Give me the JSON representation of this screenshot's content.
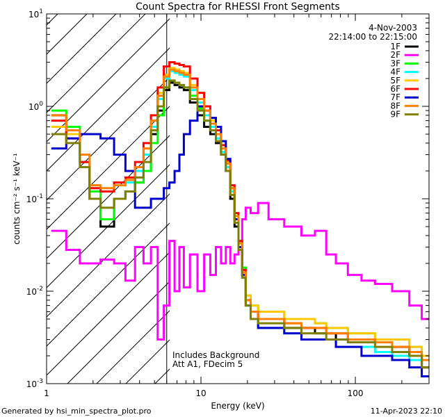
{
  "chart_data": {
    "type": "line",
    "title": "Count Spectra for RHESSI Front Segments",
    "xlabel": "Energy (keV)",
    "ylabel": "counts cm⁻² s⁻¹ keV⁻¹",
    "xscale": "log",
    "yscale": "log",
    "xlim": [
      1,
      300
    ],
    "ylim": [
      0.001,
      10
    ],
    "x_tick_labels": [
      {
        "value": 1,
        "label": "1"
      },
      {
        "value": 10,
        "label": "10"
      },
      {
        "value": 100,
        "label": "100"
      }
    ],
    "y_tick_labels": [
      {
        "value": 10,
        "base": "10",
        "exp": "1"
      },
      {
        "value": 1,
        "base": "10",
        "exp": "0"
      },
      {
        "value": 0.1,
        "base": "10",
        "exp": "-1"
      },
      {
        "value": 0.01,
        "base": "10",
        "exp": "-2"
      },
      {
        "value": 0.001,
        "base": "10",
        "exp": "-3"
      }
    ],
    "attenuator_boundary_keV": 6,
    "hatched_region": [
      1,
      6
    ],
    "annotation_date": "4-Nov-2003",
    "annotation_time": "22:14:00 to 22:15:00",
    "annotation_notes": [
      "Includes Background",
      "Att A1, FDecim 5"
    ],
    "legend_position": "top-right",
    "x": [
      1.2,
      1.5,
      1.8,
      2.0,
      2.5,
      3.0,
      3.5,
      4.0,
      4.5,
      5.0,
      5.5,
      6.0,
      6.5,
      7.0,
      7.5,
      8.0,
      9.0,
      10.0,
      11.0,
      12.0,
      13.0,
      14.0,
      15.0,
      16.0,
      17.0,
      18.0,
      19.0,
      20.0,
      22.0,
      25.0,
      30.0,
      40.0,
      50.0,
      60.0,
      70.0,
      80.0,
      100.0,
      120.0,
      150.0,
      200.0,
      250.0,
      290.0
    ],
    "series": [
      {
        "name": "1F",
        "color": "#000000",
        "values": [
          0.8,
          0.5,
          0.25,
          0.1,
          0.05,
          0.1,
          0.12,
          0.15,
          0.2,
          0.5,
          0.9,
          1.5,
          1.8,
          1.7,
          1.6,
          1.5,
          1.1,
          0.8,
          0.6,
          0.5,
          0.4,
          0.3,
          0.2,
          0.1,
          0.05,
          0.03,
          0.015,
          0.008,
          0.006,
          0.005,
          0.005,
          0.004,
          0.004,
          0.0035,
          0.0035,
          0.003,
          0.003,
          0.003,
          0.0028,
          0.0025,
          0.002,
          0.0015
        ]
      },
      {
        "name": "2F",
        "color": "#ff00ff",
        "values": [
          0.045,
          0.028,
          0.02,
          0.02,
          0.022,
          0.02,
          0.013,
          0.03,
          0.02,
          0.03,
          0.003,
          0.007,
          0.035,
          0.01,
          0.03,
          0.011,
          0.025,
          0.01,
          0.025,
          0.015,
          0.03,
          0.02,
          0.03,
          0.02,
          0.025,
          0.03,
          0.06,
          0.08,
          0.07,
          0.09,
          0.06,
          0.05,
          0.04,
          0.045,
          0.025,
          0.02,
          0.015,
          0.013,
          0.012,
          0.01,
          0.007,
          0.005
        ]
      },
      {
        "name": "3F",
        "color": "#00ff00",
        "values": [
          0.9,
          0.6,
          0.3,
          0.12,
          0.06,
          0.1,
          0.12,
          0.15,
          0.2,
          0.4,
          0.8,
          1.6,
          1.9,
          1.8,
          1.7,
          1.6,
          1.3,
          0.95,
          0.7,
          0.55,
          0.45,
          0.32,
          0.22,
          0.12,
          0.06,
          0.035,
          0.018,
          0.009,
          0.007,
          0.006,
          0.006,
          0.005,
          0.005,
          0.0045,
          0.004,
          0.004,
          0.0035,
          0.0035,
          0.003,
          0.003,
          0.0025,
          0.002
        ]
      },
      {
        "name": "4F",
        "color": "#00ffff",
        "values": [
          0.7,
          0.55,
          0.25,
          0.13,
          0.12,
          0.14,
          0.15,
          0.2,
          0.3,
          0.6,
          1.2,
          2.0,
          2.4,
          2.3,
          2.2,
          2.1,
          1.5,
          1.1,
          0.8,
          0.6,
          0.45,
          0.32,
          0.22,
          0.12,
          0.06,
          0.03,
          0.015,
          0.007,
          0.005,
          0.004,
          0.004,
          0.0035,
          0.003,
          0.003,
          0.003,
          0.0025,
          0.0025,
          0.0025,
          0.0022,
          0.002,
          0.0018,
          0.0015
        ]
      },
      {
        "name": "5F",
        "color": "#ffc800",
        "values": [
          0.6,
          0.5,
          0.3,
          0.14,
          0.12,
          0.15,
          0.17,
          0.22,
          0.35,
          0.7,
          1.4,
          2.2,
          2.6,
          2.5,
          2.4,
          2.3,
          1.7,
          1.2,
          0.9,
          0.7,
          0.5,
          0.35,
          0.25,
          0.13,
          0.065,
          0.035,
          0.017,
          0.009,
          0.007,
          0.006,
          0.006,
          0.005,
          0.005,
          0.0045,
          0.004,
          0.004,
          0.0035,
          0.0035,
          0.003,
          0.003,
          0.0025,
          0.002
        ]
      },
      {
        "name": "6F",
        "color": "#ff0000",
        "values": [
          0.7,
          0.45,
          0.25,
          0.13,
          0.12,
          0.15,
          0.17,
          0.25,
          0.4,
          0.8,
          1.6,
          2.7,
          3.0,
          2.9,
          2.8,
          2.7,
          2.0,
          1.4,
          1.0,
          0.75,
          0.55,
          0.38,
          0.26,
          0.14,
          0.07,
          0.035,
          0.017,
          0.008,
          0.006,
          0.005,
          0.005,
          0.0045,
          0.004,
          0.004,
          0.0035,
          0.0035,
          0.003,
          0.003,
          0.0028,
          0.0025,
          0.002,
          0.0015
        ]
      },
      {
        "name": "7F",
        "color": "#0000cc",
        "values": [
          0.35,
          0.45,
          0.5,
          0.5,
          0.45,
          0.3,
          0.2,
          0.08,
          0.08,
          0.1,
          0.1,
          0.13,
          0.15,
          0.2,
          0.3,
          0.5,
          0.7,
          1.0,
          0.9,
          0.75,
          0.6,
          0.42,
          0.27,
          0.13,
          0.06,
          0.03,
          0.015,
          0.007,
          0.005,
          0.004,
          0.004,
          0.0035,
          0.003,
          0.003,
          0.003,
          0.0025,
          0.0025,
          0.002,
          0.002,
          0.0018,
          0.0015,
          0.0012
        ]
      },
      {
        "name": "8F",
        "color": "#ff8000",
        "values": [
          0.8,
          0.55,
          0.3,
          0.14,
          0.13,
          0.14,
          0.16,
          0.22,
          0.35,
          0.7,
          1.3,
          2.1,
          2.5,
          2.4,
          2.3,
          2.2,
          1.6,
          1.2,
          0.9,
          0.65,
          0.5,
          0.35,
          0.24,
          0.13,
          0.065,
          0.033,
          0.016,
          0.008,
          0.006,
          0.005,
          0.005,
          0.0045,
          0.004,
          0.004,
          0.0035,
          0.0035,
          0.003,
          0.003,
          0.0028,
          0.0025,
          0.0022,
          0.0018
        ]
      },
      {
        "name": "9F",
        "color": "#808000",
        "values": [
          0.5,
          0.4,
          0.22,
          0.1,
          0.08,
          0.1,
          0.12,
          0.17,
          0.25,
          0.55,
          1.0,
          1.6,
          1.9,
          1.8,
          1.7,
          1.6,
          1.2,
          0.9,
          0.7,
          0.55,
          0.42,
          0.3,
          0.2,
          0.11,
          0.055,
          0.028,
          0.014,
          0.007,
          0.005,
          0.0045,
          0.0045,
          0.004,
          0.0035,
          0.0035,
          0.003,
          0.003,
          0.0028,
          0.0028,
          0.0025,
          0.0022,
          0.002,
          0.0015
        ]
      }
    ]
  },
  "footer": {
    "left": "Generated by hsi_min_spectra_plot.pro",
    "right": "11-Apr-2023 22:10"
  }
}
